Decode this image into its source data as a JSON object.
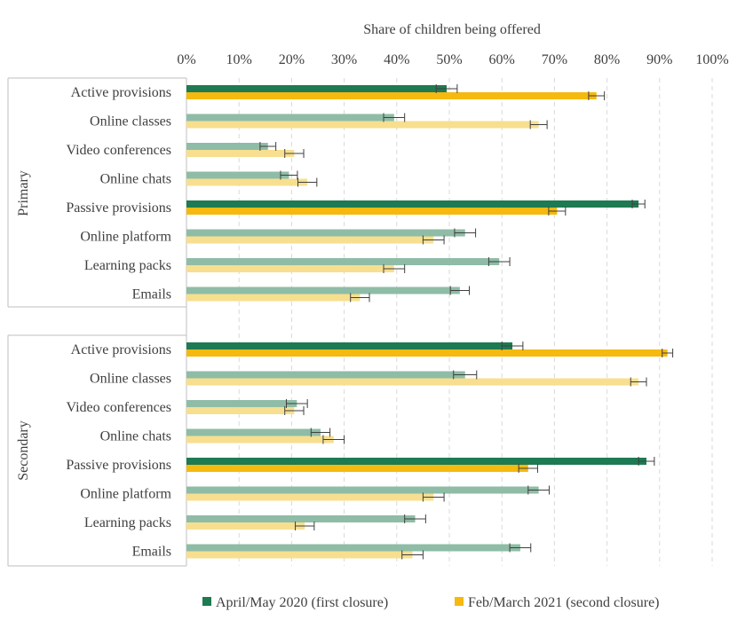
{
  "chart_data": {
    "type": "bar",
    "orientation": "horizontal",
    "title": "Share of children being offered",
    "xlabel": "Share of children being offered",
    "xlim": [
      0,
      100
    ],
    "x_ticks": [
      "0%",
      "10%",
      "20%",
      "30%",
      "40%",
      "50%",
      "60%",
      "70%",
      "80%",
      "90%",
      "100%"
    ],
    "grid": "vertical dashed",
    "legend_position": "bottom",
    "colors": {
      "first_main": "#1e7a52",
      "first_sub": "#8fbca6",
      "second_main": "#f5b90f",
      "second_sub": "#f7df8f",
      "error_bar": "#404040",
      "grid": "#d9d9d9",
      "axis": "#bfbfbf"
    },
    "series": [
      {
        "name": "April/May 2020 (first closure)",
        "key": "first"
      },
      {
        "name": "Feb/March 2021 (second closure)",
        "key": "second"
      }
    ],
    "groups": [
      {
        "name": "Primary",
        "categories": [
          {
            "label": "Active provisions",
            "main": true,
            "first": 49.5,
            "first_err": 2.0,
            "second": 78.0,
            "second_err": 1.5
          },
          {
            "label": "Online classes",
            "main": false,
            "first": 39.5,
            "first_err": 2.0,
            "second": 67.0,
            "second_err": 1.6
          },
          {
            "label": "Video conferences",
            "main": false,
            "first": 15.5,
            "first_err": 1.5,
            "second": 20.5,
            "second_err": 1.8
          },
          {
            "label": "Online chats",
            "main": false,
            "first": 19.5,
            "first_err": 1.6,
            "second": 23.0,
            "second_err": 1.8
          },
          {
            "label": "Passive provisions",
            "main": true,
            "first": 86.0,
            "first_err": 1.2,
            "second": 70.5,
            "second_err": 1.6
          },
          {
            "label": "Online platform",
            "main": false,
            "first": 53.0,
            "first_err": 2.0,
            "second": 47.0,
            "second_err": 2.0
          },
          {
            "label": "Learning packs",
            "main": false,
            "first": 59.5,
            "first_err": 2.0,
            "second": 39.5,
            "second_err": 2.0
          },
          {
            "label": "Emails",
            "main": false,
            "first": 52.0,
            "first_err": 1.8,
            "second": 33.0,
            "second_err": 1.8
          }
        ]
      },
      {
        "name": "Secondary",
        "categories": [
          {
            "label": "Active provisions",
            "main": true,
            "first": 62.0,
            "first_err": 2.0,
            "second": 91.5,
            "second_err": 1.0
          },
          {
            "label": "Online classes",
            "main": false,
            "first": 53.0,
            "first_err": 2.2,
            "second": 86.0,
            "second_err": 1.5
          },
          {
            "label": "Video conferences",
            "main": false,
            "first": 21.0,
            "first_err": 2.0,
            "second": 20.5,
            "second_err": 1.8
          },
          {
            "label": "Online chats",
            "main": false,
            "first": 25.5,
            "first_err": 1.8,
            "second": 28.0,
            "second_err": 2.0
          },
          {
            "label": "Passive provisions",
            "main": true,
            "first": 87.5,
            "first_err": 1.5,
            "second": 65.0,
            "second_err": 1.8
          },
          {
            "label": "Online platform",
            "main": false,
            "first": 67.0,
            "first_err": 2.0,
            "second": 47.0,
            "second_err": 2.0
          },
          {
            "label": "Learning packs",
            "main": false,
            "first": 43.5,
            "first_err": 2.0,
            "second": 22.5,
            "second_err": 1.8
          },
          {
            "label": "Emails",
            "main": false,
            "first": 63.5,
            "first_err": 2.0,
            "second": 43.0,
            "second_err": 2.0
          }
        ]
      }
    ]
  }
}
